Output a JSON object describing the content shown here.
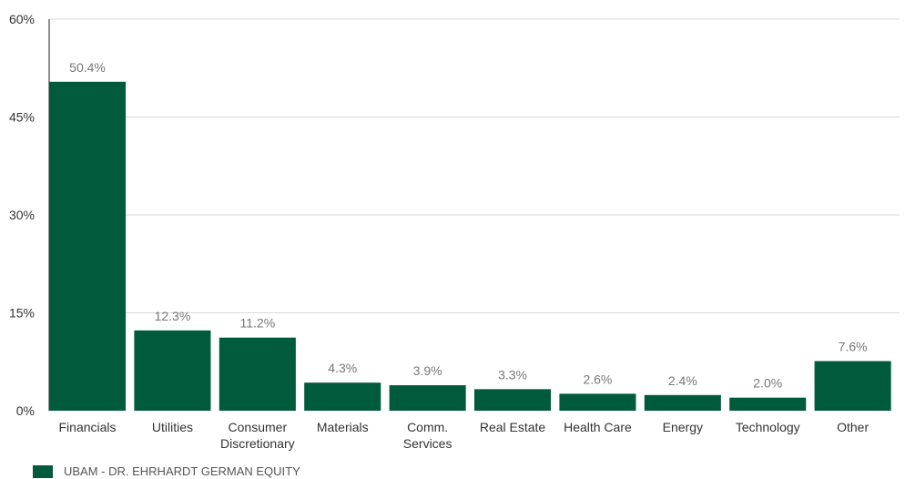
{
  "chart_data": {
    "type": "bar",
    "categories": [
      "Financials",
      "Utilities",
      "Consumer Discretionary",
      "Materials",
      "Comm. Services",
      "Real Estate",
      "Health Care",
      "Energy",
      "Technology",
      "Other"
    ],
    "category_lines": [
      [
        "Financials"
      ],
      [
        "Utilities"
      ],
      [
        "Consumer",
        "Discretionary"
      ],
      [
        "Materials"
      ],
      [
        "Comm.",
        "Services"
      ],
      [
        "Real Estate"
      ],
      [
        "Health Care"
      ],
      [
        "Energy"
      ],
      [
        "Technology"
      ],
      [
        "Other"
      ]
    ],
    "series": [
      {
        "name": "UBAM - DR. EHRHARDT GERMAN EQUITY",
        "values": [
          50.4,
          12.3,
          11.2,
          4.3,
          3.9,
          3.3,
          2.6,
          2.4,
          2.0,
          7.6
        ]
      }
    ],
    "data_labels": [
      "50.4%",
      "12.3%",
      "11.2%",
      "4.3%",
      "3.9%",
      "3.3%",
      "2.6%",
      "2.4%",
      "2.0%",
      "7.6%"
    ],
    "yticks": [
      0,
      15,
      30,
      45,
      60
    ],
    "ytick_labels": [
      "0%",
      "15%",
      "30%",
      "45%",
      "60%"
    ],
    "ylim": [
      0,
      60
    ],
    "grid": true,
    "legend_position": "bottom-left",
    "colors": {
      "bar": "#005a3c",
      "grid": "#d9d9d9",
      "axis": "#222222",
      "text": "#333333",
      "label": "#777777"
    }
  },
  "legend": {
    "label": "UBAM - DR. EHRHARDT GERMAN EQUITY"
  }
}
